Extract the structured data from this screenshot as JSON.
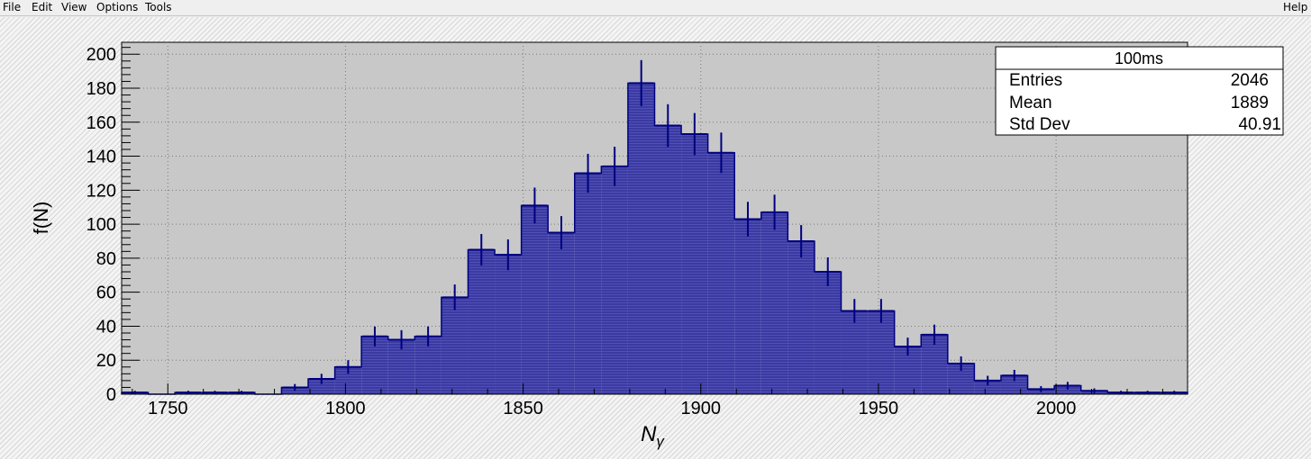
{
  "menu": {
    "file": "File",
    "edit": "Edit",
    "view": "View",
    "options": "Options",
    "tools": "Tools",
    "help": "Help"
  },
  "stats_box": {
    "title": "100ms",
    "rows": [
      {
        "label": "Entries",
        "value": "2046"
      },
      {
        "label": "Mean",
        "value": "1889"
      },
      {
        "label": "Std Dev",
        "value": "40.91"
      }
    ]
  },
  "colors": {
    "fill": "#3a3aa0",
    "line": "#000080",
    "frame_bg": "#c8c8c8"
  },
  "chart_data": {
    "type": "bar",
    "title": "",
    "xlabel": "Nγ",
    "ylabel": "f(N)",
    "xlim": [
      1737,
      2037
    ],
    "ylim": [
      0,
      207
    ],
    "bin_width": 7.5,
    "x_ticks": [
      1750,
      1800,
      1850,
      1900,
      1950,
      2000
    ],
    "y_ticks": [
      0,
      20,
      40,
      60,
      80,
      100,
      120,
      140,
      160,
      180,
      200
    ],
    "grid": true,
    "legend": "top-right stats box",
    "bin_low_edges": [
      1737,
      1744.5,
      1752,
      1759.5,
      1767,
      1774.5,
      1782,
      1789.5,
      1797,
      1804.5,
      1812,
      1819.5,
      1827,
      1834.5,
      1842,
      1849.5,
      1857,
      1864.5,
      1872,
      1879.5,
      1887,
      1894.5,
      1902,
      1909.5,
      1917,
      1924.5,
      1932,
      1939.5,
      1947,
      1954.5,
      1962,
      1969.5,
      1977,
      1984.5,
      1992,
      1999.5,
      2007,
      2014.5,
      2022,
      2029.5
    ],
    "values": [
      1,
      0,
      1,
      1,
      1,
      0,
      4,
      9,
      16,
      34,
      32,
      34,
      57,
      85,
      82,
      111,
      95,
      130,
      134,
      183,
      158,
      153,
      142,
      103,
      107,
      90,
      72,
      49,
      49,
      28,
      35,
      18,
      8,
      11,
      3,
      5,
      2,
      1,
      1,
      1
    ]
  }
}
